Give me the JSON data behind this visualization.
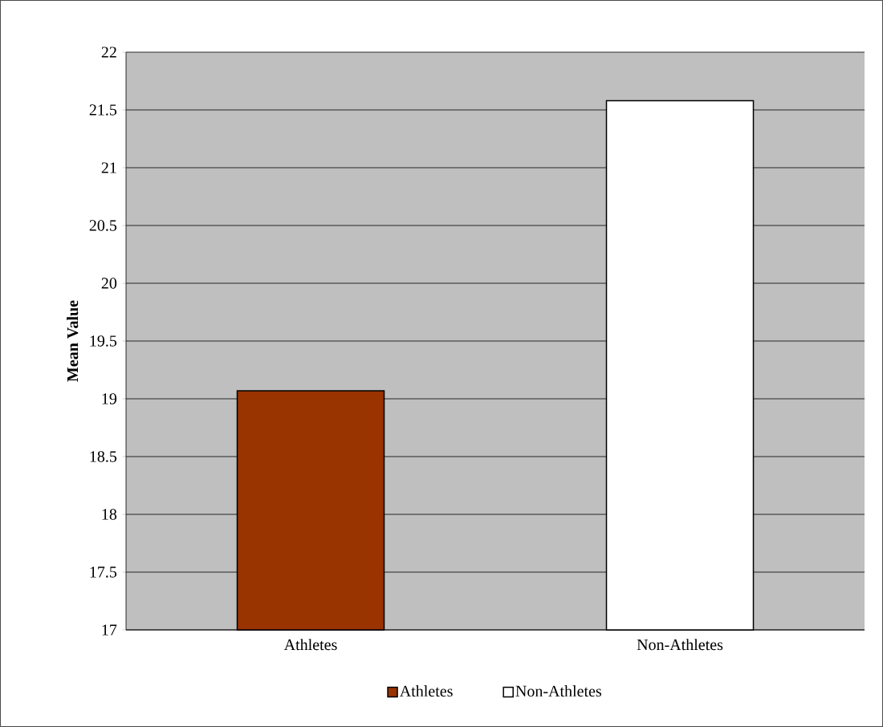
{
  "chart_data": {
    "type": "bar",
    "ylabel": "Mean Value",
    "categories": [
      "Athletes",
      "Non-Athletes"
    ],
    "series": [
      {
        "name": "Athletes",
        "color": "#993300",
        "values": [
          19.07,
          null
        ]
      },
      {
        "name": "Non-Athletes",
        "color": "#ffffff",
        "values": [
          null,
          21.58
        ]
      }
    ],
    "ylim": [
      17,
      22
    ],
    "yticks": [
      17,
      17.5,
      18,
      18.5,
      19,
      19.5,
      20,
      20.5,
      21,
      21.5,
      22
    ],
    "grid": "y",
    "legend": "bottom"
  }
}
